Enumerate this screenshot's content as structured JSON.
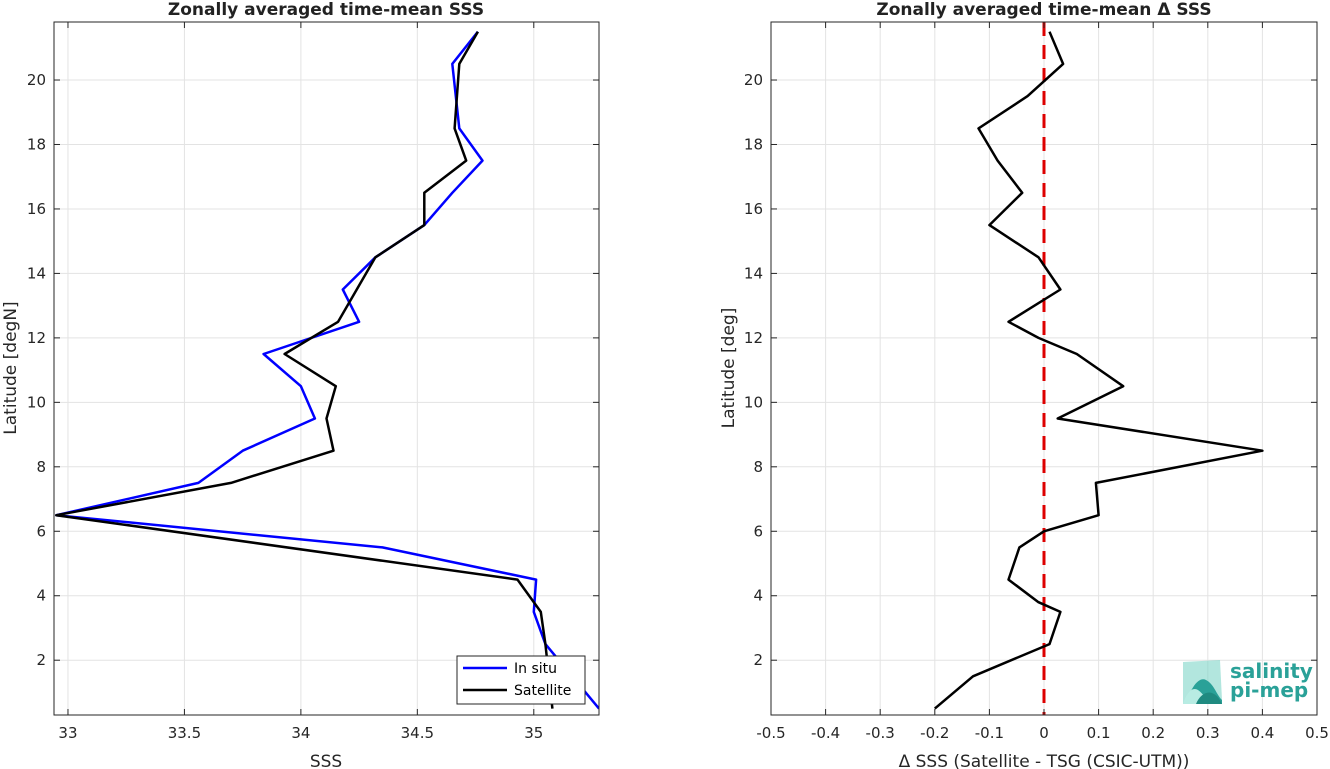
{
  "chart_data": [
    {
      "type": "line",
      "title": "Zonally averaged time-mean SSS",
      "xlabel": "SSS",
      "ylabel": "Latitude [degN]",
      "xlim": [
        32.94,
        35.28
      ],
      "ylim": [
        0.3,
        21.8
      ],
      "xticks": [
        33,
        33.5,
        34,
        34.5,
        35
      ],
      "xtick_labels": [
        "33",
        "33.5",
        "34",
        "34.5",
        "35"
      ],
      "yticks": [
        2,
        4,
        6,
        8,
        10,
        12,
        14,
        16,
        18,
        20
      ],
      "ytick_labels": [
        "2",
        "4",
        "6",
        "8",
        "10",
        "12",
        "14",
        "16",
        "18",
        "20"
      ],
      "grid": true,
      "legend_position": "bottom-right",
      "series": [
        {
          "name": "In situ",
          "color": "#0000ff",
          "x": [
            35.28,
            35.05,
            35.0,
            35.01,
            34.35,
            32.95,
            33.56,
            33.75,
            34.06,
            34.0,
            33.84,
            34.25,
            34.18,
            34.32,
            34.53,
            34.65,
            34.78,
            34.68,
            34.65,
            34.76
          ],
          "y": [
            0.5,
            2.5,
            3.5,
            4.5,
            5.5,
            6.5,
            7.5,
            8.5,
            9.5,
            10.5,
            11.5,
            12.5,
            13.5,
            14.5,
            15.5,
            16.5,
            17.5,
            18.5,
            20.5,
            21.5
          ]
        },
        {
          "name": "Satellite",
          "color": "#000000",
          "x": [
            35.08,
            35.05,
            35.03,
            34.93,
            32.95,
            33.7,
            34.14,
            34.11,
            34.15,
            33.93,
            34.16,
            34.32,
            34.53,
            34.53,
            34.71,
            34.66,
            34.68,
            34.76
          ],
          "y": [
            0.5,
            2.5,
            3.5,
            4.5,
            6.5,
            7.5,
            8.5,
            9.5,
            10.5,
            11.5,
            12.5,
            14.5,
            15.5,
            16.5,
            17.5,
            18.5,
            20.5,
            21.5
          ]
        }
      ]
    },
    {
      "type": "line",
      "title": "Zonally averaged time-mean Δ SSS",
      "xlabel": "Δ SSS (Satellite - TSG (CSIC-UTM))",
      "ylabel": "Latitude [deg]",
      "xlim": [
        -0.5,
        0.5
      ],
      "ylim": [
        0.3,
        21.8
      ],
      "xticks": [
        -0.5,
        -0.4,
        -0.3,
        -0.2,
        -0.1,
        0,
        0.1,
        0.2,
        0.3,
        0.4,
        0.5
      ],
      "xtick_labels": [
        "-0.5",
        "-0.4",
        "-0.3",
        "-0.2",
        "-0.1",
        "0",
        "0.1",
        "0.2",
        "0.3",
        "0.4",
        "0.5"
      ],
      "yticks": [
        2,
        4,
        6,
        8,
        10,
        12,
        14,
        16,
        18,
        20
      ],
      "ytick_labels": [
        "2",
        "4",
        "6",
        "8",
        "10",
        "12",
        "14",
        "16",
        "18",
        "20"
      ],
      "grid": true,
      "reference_line": {
        "x": 0,
        "color": "#dd0000",
        "style": "dashed"
      },
      "series": [
        {
          "color": "#000000",
          "x": [
            -0.2,
            -0.13,
            0.01,
            0.03,
            -0.01,
            -0.065,
            -0.045,
            0.0,
            0.1,
            0.095,
            0.4,
            0.025,
            0.145,
            0.06,
            -0.01,
            -0.065,
            0.03,
            -0.01,
            -0.1,
            -0.04,
            -0.085,
            -0.12,
            -0.03,
            0.035,
            0.01
          ],
          "y": [
            0.5,
            1.5,
            2.5,
            3.5,
            3.8,
            4.5,
            5.5,
            6.0,
            6.5,
            7.5,
            8.5,
            9.5,
            10.5,
            11.5,
            12.0,
            12.5,
            13.5,
            14.5,
            15.5,
            16.5,
            17.5,
            18.5,
            19.5,
            20.5,
            21.5
          ]
        }
      ]
    }
  ],
  "logo": {
    "line1": "salinity",
    "line2": "pi-mep",
    "color": "#2aa198"
  }
}
